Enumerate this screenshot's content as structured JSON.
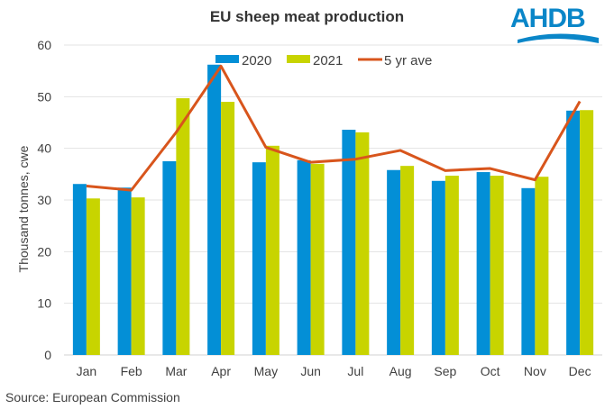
{
  "chart_data": {
    "type": "bar",
    "title": "EU sheep meat production",
    "ylabel": "Thousand tonnes, cwe",
    "xlabel": "",
    "ylim": [
      0,
      60
    ],
    "yticks": [
      0,
      10,
      20,
      30,
      40,
      50,
      60
    ],
    "grid": true,
    "legend": "top-center",
    "categories": [
      "Jan",
      "Feb",
      "Mar",
      "Apr",
      "May",
      "Jun",
      "Jul",
      "Aug",
      "Sep",
      "Oct",
      "Nov",
      "Dec"
    ],
    "series": [
      {
        "name": "2020",
        "type": "bar",
        "color": "#038fd6",
        "values": [
          33.1,
          32.4,
          37.5,
          56.2,
          37.3,
          37.7,
          43.6,
          35.8,
          33.7,
          35.4,
          32.3,
          47.3
        ]
      },
      {
        "name": "2021",
        "type": "bar",
        "color": "#c8d400",
        "values": [
          30.3,
          30.5,
          49.7,
          49.0,
          40.5,
          37.0,
          43.1,
          36.6,
          34.7,
          34.7,
          34.5,
          47.4
        ]
      },
      {
        "name": "5 yr ave",
        "type": "line",
        "color": "#d8551c",
        "values": [
          32.7,
          31.9,
          43.1,
          55.9,
          40.2,
          37.3,
          37.9,
          39.6,
          35.7,
          36.1,
          33.9,
          49.1
        ]
      }
    ]
  },
  "source": "Source: European Commission",
  "logo": {
    "text": "AHDB",
    "color": "#0a86c8"
  }
}
